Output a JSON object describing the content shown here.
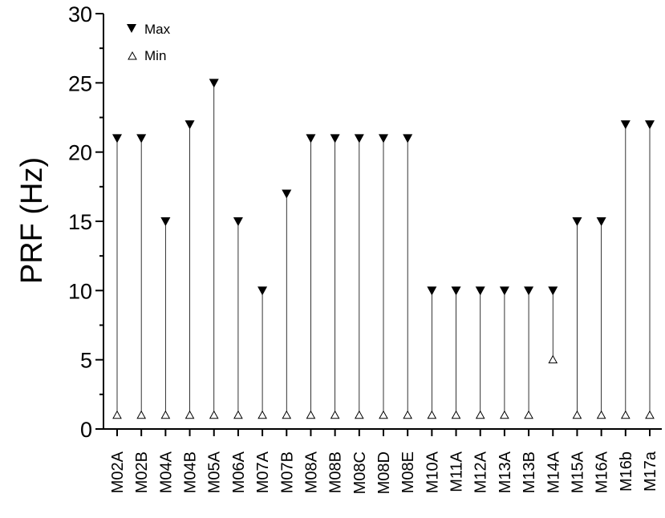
{
  "chart_data": {
    "type": "scatter",
    "title": "",
    "xlabel": "",
    "ylabel": "PRF (Hz)",
    "ylim": [
      0,
      30
    ],
    "yticks": [
      0,
      5,
      10,
      15,
      20,
      25,
      30
    ],
    "grid": false,
    "legend_placement": "top-left",
    "categories": [
      "M02A",
      "M02B",
      "M04A",
      "M04B",
      "M05A",
      "M06A",
      "M07A",
      "M07B",
      "M08A",
      "M08B",
      "M08C",
      "M08D",
      "M08E",
      "M10A",
      "M11A",
      "M12A",
      "M13A",
      "M13B",
      "M14A",
      "M15A",
      "M16A",
      "M16b",
      "M17a"
    ],
    "series": [
      {
        "name": "Max",
        "marker": "filled-down-triangle",
        "color": "#000000",
        "values": [
          21,
          21,
          15,
          22,
          25,
          15,
          10,
          17,
          21,
          21,
          21,
          21,
          21,
          10,
          10,
          10,
          10,
          10,
          10,
          15,
          15,
          22,
          22
        ]
      },
      {
        "name": "Min",
        "marker": "open-up-triangle",
        "color": "#000000",
        "values": [
          1,
          1,
          1,
          1,
          1,
          1,
          1,
          1,
          1,
          1,
          1,
          1,
          1,
          1,
          1,
          1,
          1,
          1,
          5,
          1,
          1,
          1,
          1
        ]
      }
    ]
  }
}
